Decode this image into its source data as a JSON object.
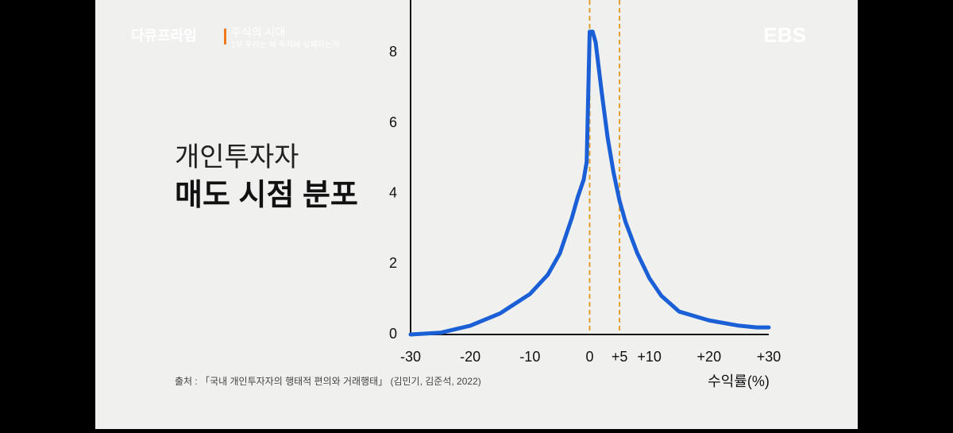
{
  "overlay": {
    "program": "다큐프라임",
    "episode": "주식의 시대",
    "subtitle": "1부 우리는 왜 투자에 실패하는가",
    "channel": "EBS"
  },
  "chart_data": {
    "type": "line",
    "title": "개인투자자",
    "subtitle": "매도 시점 분포",
    "x_label": "수익률(%)",
    "source": "출처 : 「국내 개인투자자의 행태적 편의와 거래행태」 (김민기, 김준석, 2022)",
    "x": [
      -30,
      -25,
      -20,
      -15,
      -10,
      -7,
      -5,
      -3,
      -2,
      -1,
      -0.5,
      0,
      0.5,
      1,
      2,
      3,
      4,
      5,
      6,
      8,
      10,
      12,
      15,
      20,
      25,
      28,
      30
    ],
    "series": [
      {
        "color": "#1a5fd6",
        "values": [
          0,
          0.05,
          0.25,
          0.6,
          1.15,
          1.7,
          2.3,
          3.3,
          3.9,
          4.4,
          4.9,
          8.6,
          8.6,
          8.3,
          6.9,
          5.6,
          4.6,
          3.8,
          3.2,
          2.3,
          1.6,
          1.1,
          0.65,
          0.4,
          0.25,
          0.2,
          0.2
        ]
      }
    ],
    "xlim": [
      -30,
      30
    ],
    "xticks": [
      -30,
      -20,
      -10,
      0,
      {
        "value": 5,
        "label": "+5"
      },
      {
        "value": 10,
        "label": "+10"
      },
      {
        "value": 20,
        "label": "+20"
      },
      {
        "value": 30,
        "label": "+30"
      }
    ],
    "ylim": [
      0,
      9.5
    ],
    "yticks": [
      0,
      2,
      4,
      6,
      8
    ],
    "vlines": [
      0,
      5
    ],
    "vline_color": "#e0a030",
    "grid": false
  }
}
